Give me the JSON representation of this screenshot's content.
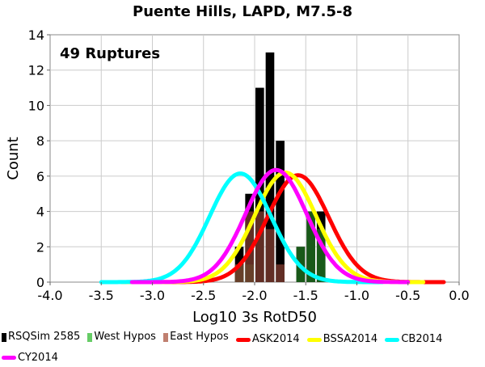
{
  "chart_data": {
    "type": "bar",
    "title": "Puente Hills, LAPD, M7.5-8",
    "annotation": "49 Ruptures",
    "xlabel": "Log10 3s RotD50",
    "ylabel": "Count",
    "xlim": [
      -4.0,
      0.0
    ],
    "ylim": [
      0,
      14
    ],
    "xticks": [
      "-4.0",
      "-3.5",
      "-3.0",
      "-2.5",
      "-2.0",
      "-1.5",
      "-1.0",
      "-0.5",
      "0.0"
    ],
    "yticks": [
      "0",
      "2",
      "4",
      "6",
      "8",
      "10",
      "12",
      "14"
    ],
    "bin_width": 0.1,
    "histogram": {
      "bin_centers": [
        -2.15,
        -2.05,
        -1.95,
        -1.85,
        -1.75,
        -1.65,
        -1.55,
        -1.45,
        -1.35
      ],
      "series": [
        {
          "name": "RSQSim 2585",
          "color": "#000000",
          "values": [
            2,
            5,
            11,
            13,
            8,
            0,
            2,
            4,
            4
          ]
        },
        {
          "name": "West Hypos",
          "color": "#1f6f1f",
          "values": [
            1,
            1,
            0,
            0,
            0,
            0,
            2,
            4,
            3
          ]
        },
        {
          "name": "East Hypos",
          "color": "#7a3a2e",
          "values": [
            1,
            4,
            4,
            3,
            1,
            0,
            0,
            0,
            0
          ]
        }
      ]
    },
    "curves": [
      {
        "name": "ASK2014",
        "color": "#ff0000",
        "mean": -1.575,
        "peak": 6.05,
        "sigma": 0.3,
        "x_range": [
          -3.15,
          -0.15
        ]
      },
      {
        "name": "BSSA2014",
        "color": "#ffff00",
        "mean": -1.7,
        "peak": 6.2,
        "sigma": 0.3,
        "x_range": [
          -3.3,
          -0.35
        ]
      },
      {
        "name": "CB2014",
        "color": "#00ffff",
        "mean": -2.14,
        "peak": 6.15,
        "sigma": 0.3,
        "x_range": [
          -3.5,
          -0.75
        ]
      },
      {
        "name": "CY2014",
        "color": "#ff00ff",
        "mean": -1.79,
        "peak": 6.35,
        "sigma": 0.3,
        "x_range": [
          -3.2,
          -0.5
        ]
      }
    ]
  },
  "legend": [
    {
      "label": "RSQSim 2585",
      "kind": "bar",
      "color": "#000000"
    },
    {
      "label": "West Hypos",
      "kind": "bar",
      "color": "#66cc66"
    },
    {
      "label": "East Hypos",
      "kind": "bar",
      "color": "#c08070"
    },
    {
      "label": "ASK2014",
      "kind": "line",
      "color": "#ff0000"
    },
    {
      "label": "BSSA2014",
      "kind": "line",
      "color": "#ffff00"
    },
    {
      "label": "CB2014",
      "kind": "line",
      "color": "#00ffff"
    },
    {
      "label": "CY2014",
      "kind": "line",
      "color": "#ff00ff"
    }
  ]
}
